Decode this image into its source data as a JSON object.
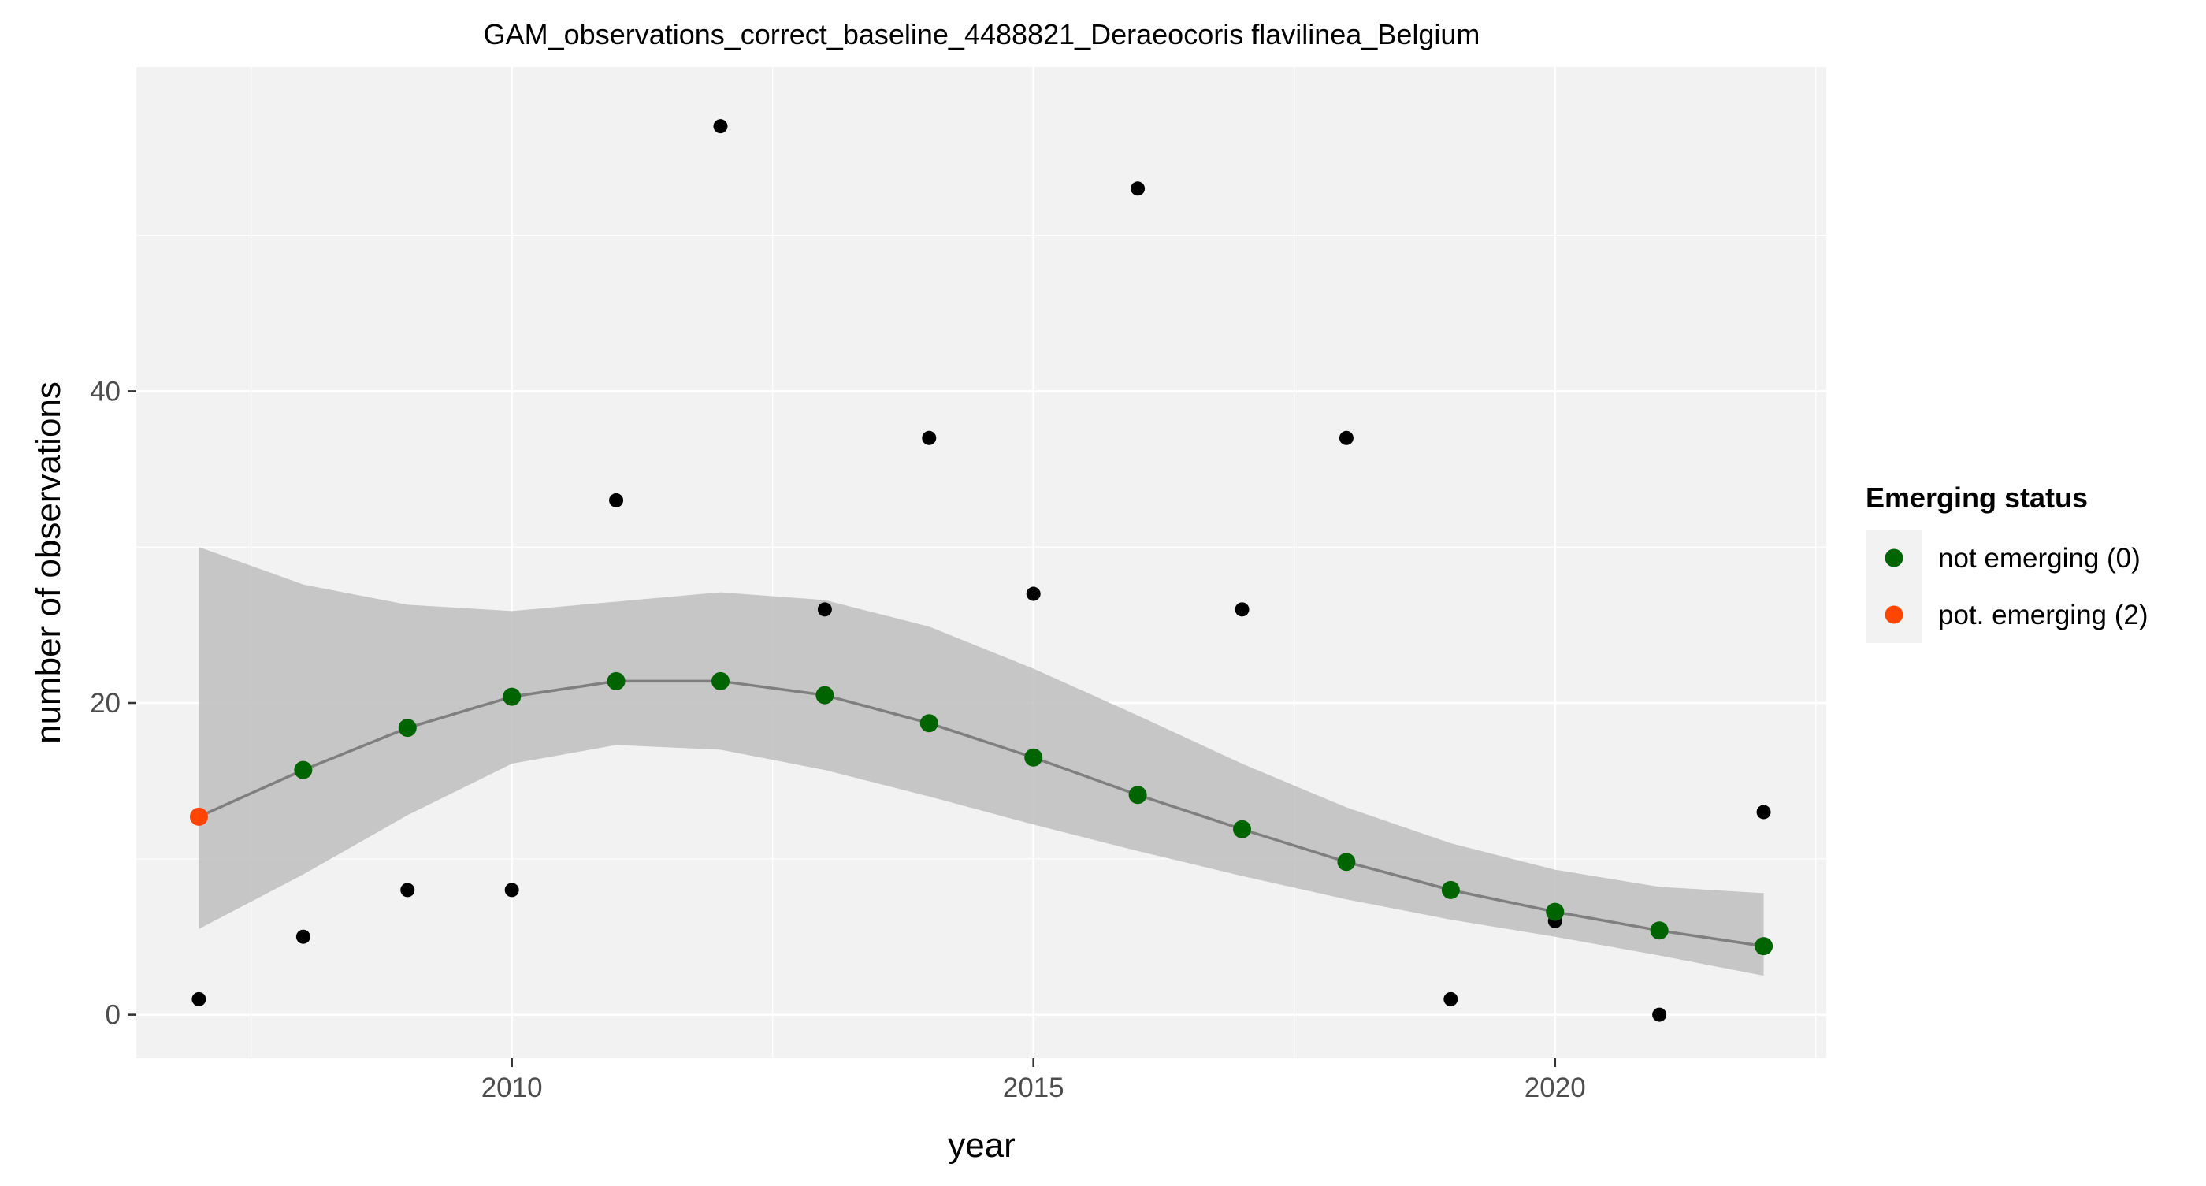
{
  "chart_data": {
    "type": "scatter",
    "title": "GAM_observations_correct_baseline_4488821_Deraeocoris flavilinea_Belgium",
    "xlabel": "year",
    "ylabel": "number of observations",
    "xlim": [
      2006.4,
      2022.6
    ],
    "ylim": [
      -2.8,
      60.8
    ],
    "x_ticks": [
      2010,
      2015,
      2020
    ],
    "y_ticks": [
      0,
      20,
      40
    ],
    "grid": true,
    "legend": {
      "title": "Emerging status",
      "placement": "right",
      "entries": [
        {
          "label": "not emerging (0)",
          "color": "#006400"
        },
        {
          "label": "pot. emerging (2)",
          "color": "#FF4500"
        }
      ]
    },
    "colors": {
      "panel_bg": "#F2F2F2",
      "grid": "#FFFFFF",
      "ribbon": "#BEBEBE",
      "fit_line": "#7F7F7F",
      "observed": "#000000"
    },
    "observed": {
      "x": [
        2007,
        2008,
        2009,
        2010,
        2011,
        2012,
        2013,
        2014,
        2015,
        2016,
        2017,
        2018,
        2019,
        2020,
        2021,
        2022
      ],
      "y": [
        1,
        5,
        8,
        8,
        33,
        57,
        26,
        37,
        27,
        53,
        26,
        37,
        1,
        6,
        0,
        13
      ]
    },
    "fit": {
      "x": [
        2007,
        2008,
        2009,
        2010,
        2011,
        2012,
        2013,
        2014,
        2015,
        2016,
        2017,
        2018,
        2019,
        2020,
        2021,
        2022
      ],
      "y": [
        12.7,
        15.7,
        18.4,
        20.4,
        21.4,
        21.4,
        20.5,
        18.7,
        16.5,
        14.1,
        11.9,
        9.8,
        8.0,
        6.6,
        5.4,
        4.4
      ],
      "lower": [
        5.5,
        9.0,
        12.8,
        16.1,
        17.3,
        17.0,
        15.7,
        14.0,
        12.2,
        10.5,
        8.9,
        7.4,
        6.1,
        5.0,
        3.8,
        2.5
      ],
      "upper": [
        30.0,
        27.6,
        26.3,
        25.9,
        26.5,
        27.1,
        26.6,
        24.9,
        22.2,
        19.2,
        16.1,
        13.3,
        11.0,
        9.3,
        8.2,
        7.8
      ],
      "status": [
        "pot. emerging (2)",
        "not emerging (0)",
        "not emerging (0)",
        "not emerging (0)",
        "not emerging (0)",
        "not emerging (0)",
        "not emerging (0)",
        "not emerging (0)",
        "not emerging (0)",
        "not emerging (0)",
        "not emerging (0)",
        "not emerging (0)",
        "not emerging (0)",
        "not emerging (0)",
        "not emerging (0)",
        "not emerging (0)"
      ]
    }
  }
}
